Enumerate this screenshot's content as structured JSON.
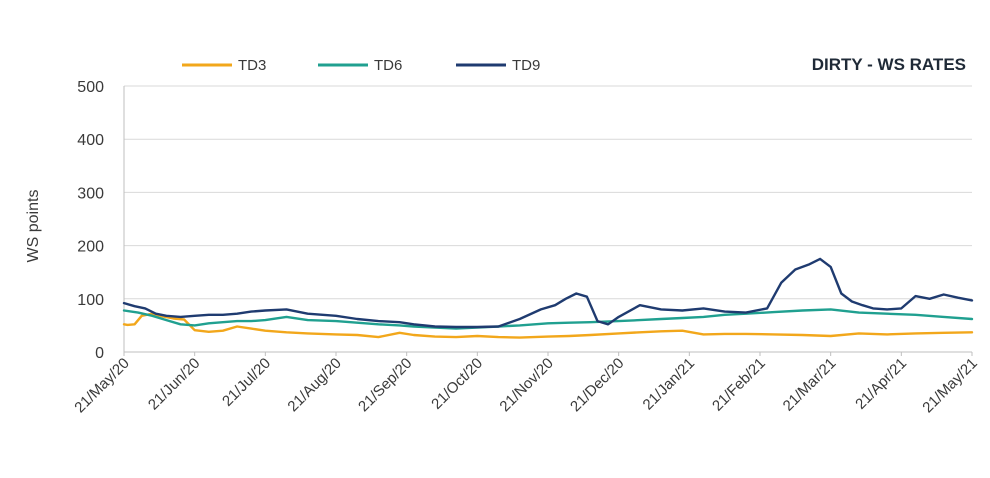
{
  "chart_data": {
    "type": "line",
    "title": "DIRTY - WS RATES",
    "ylabel": "WS points",
    "xlabel": "",
    "ylim": [
      0,
      500
    ],
    "yticks": [
      0,
      100,
      200,
      300,
      400,
      500
    ],
    "xticks": [
      "21/May/20",
      "21/Jun/20",
      "21/Jul/20",
      "21/Aug/20",
      "21/Sep/20",
      "21/Oct/20",
      "21/Nov/20",
      "21/Dec/20",
      "21/Jan/21",
      "21/Feb/21",
      "21/Mar/21",
      "21/Apr/21",
      "21/May/21"
    ],
    "grid": "horizontal",
    "legend": "top",
    "series": [
      {
        "name": "TD3",
        "color": "#f2a71b",
        "x": [
          0,
          0.05,
          0.15,
          0.25,
          0.4,
          0.55,
          0.7,
          0.85,
          1.0,
          1.2,
          1.4,
          1.6,
          1.8,
          2.0,
          2.3,
          2.6,
          3.0,
          3.3,
          3.6,
          3.9,
          4.1,
          4.4,
          4.7,
          5.0,
          5.3,
          5.6,
          6.0,
          6.3,
          6.6,
          7.0,
          7.3,
          7.6,
          7.9,
          8.2,
          8.5,
          8.8,
          9.2,
          9.6,
          10.0,
          10.4,
          10.8,
          11.2,
          11.6,
          12.0
        ],
        "values": [
          52,
          51,
          52,
          68,
          72,
          67,
          63,
          61,
          41,
          38,
          40,
          48,
          44,
          40,
          37,
          35,
          33,
          32,
          28,
          36,
          32,
          29,
          28,
          30,
          28,
          27,
          29,
          30,
          32,
          35,
          37,
          39,
          40,
          33,
          34,
          34,
          33,
          32,
          30,
          35,
          33,
          35,
          36,
          37
        ]
      },
      {
        "name": "TD6",
        "color": "#20a090",
        "x": [
          0,
          0.2,
          0.4,
          0.6,
          0.8,
          1.0,
          1.2,
          1.4,
          1.6,
          1.8,
          2.0,
          2.3,
          2.6,
          3.0,
          3.3,
          3.6,
          3.9,
          4.1,
          4.4,
          4.7,
          5.0,
          5.3,
          5.6,
          6.0,
          6.3,
          6.6,
          7.0,
          7.3,
          7.6,
          7.9,
          8.2,
          8.5,
          8.8,
          9.2,
          9.6,
          10.0,
          10.4,
          10.8,
          11.2,
          11.6,
          12.0
        ],
        "values": [
          78,
          74,
          68,
          60,
          52,
          50,
          54,
          56,
          58,
          58,
          60,
          66,
          60,
          58,
          55,
          52,
          50,
          48,
          46,
          44,
          46,
          48,
          50,
          54,
          55,
          56,
          58,
          60,
          62,
          64,
          66,
          70,
          72,
          75,
          78,
          80,
          74,
          72,
          70,
          66,
          62
        ]
      },
      {
        "name": "TD9",
        "color": "#1f3b70",
        "x": [
          0,
          0.15,
          0.3,
          0.45,
          0.6,
          0.8,
          1.0,
          1.2,
          1.4,
          1.6,
          1.8,
          2.0,
          2.3,
          2.6,
          3.0,
          3.3,
          3.6,
          3.9,
          4.1,
          4.4,
          4.7,
          5.0,
          5.3,
          5.6,
          5.9,
          6.1,
          6.25,
          6.4,
          6.55,
          6.7,
          6.85,
          7.0,
          7.3,
          7.6,
          7.9,
          8.2,
          8.5,
          8.8,
          9.1,
          9.3,
          9.5,
          9.7,
          9.85,
          10.0,
          10.15,
          10.3,
          10.45,
          10.6,
          10.8,
          11.0,
          11.2,
          11.4,
          11.6,
          11.8,
          12.0
        ],
        "values": [
          92,
          86,
          82,
          72,
          68,
          66,
          68,
          70,
          70,
          72,
          76,
          78,
          80,
          72,
          68,
          62,
          58,
          56,
          52,
          48,
          47,
          47,
          48,
          62,
          80,
          88,
          100,
          110,
          104,
          58,
          52,
          66,
          88,
          80,
          78,
          82,
          76,
          74,
          82,
          130,
          155,
          165,
          175,
          160,
          110,
          95,
          88,
          82,
          80,
          82,
          105,
          100,
          108,
          102,
          97
        ]
      }
    ]
  }
}
